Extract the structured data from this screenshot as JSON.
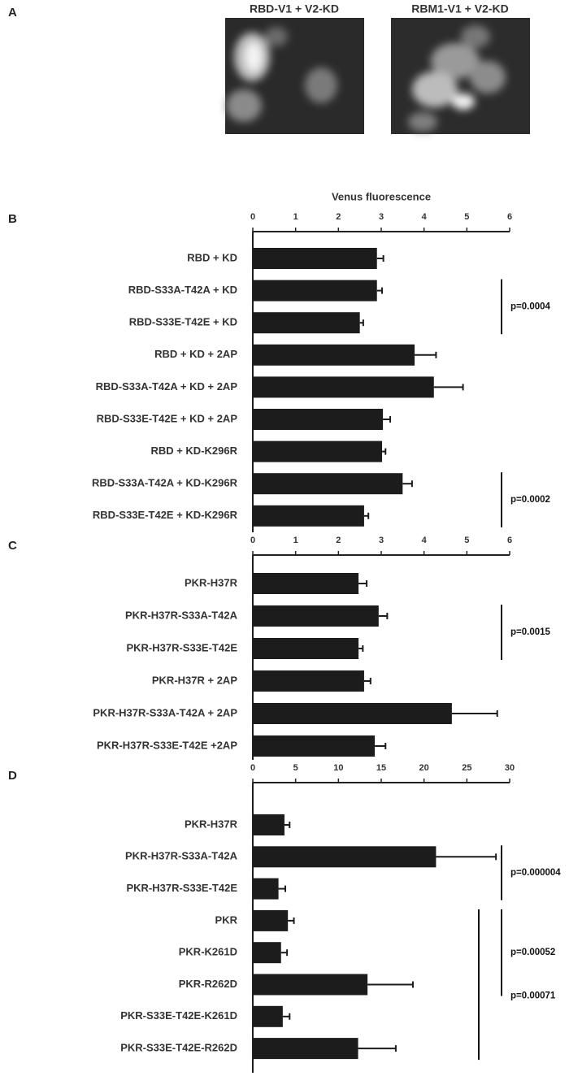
{
  "figure": {
    "panel": "A",
    "images": [
      "RBD-V1 + V2-KD",
      "RBM1-V1 + V2-KD"
    ]
  },
  "chart_data": [
    {
      "type": "hbar",
      "panel": "B",
      "x_label": "Venus fluorescence",
      "color": "#1c1c1c",
      "categories": [
        "RBD + KD",
        "RBD-S33A-T42A + KD",
        "RBD-S33E-T42E + KD",
        "RBD + KD + 2AP",
        "RBD-S33A-T42A + KD + 2AP",
        "RBD-S33E-T42E + KD + 2AP",
        "RBD + KD-K296R",
        "RBD-S33A-T42A + KD-K296R",
        "RBD-S33E-T42E + KD-K296R"
      ],
      "values": [
        2.9,
        2.9,
        2.5,
        3.78,
        4.23,
        3.04,
        3.02,
        3.5,
        2.6
      ],
      "errors": [
        0.15,
        0.12,
        0.08,
        0.5,
        0.68,
        0.17,
        0.08,
        0.22,
        0.1
      ],
      "xlim": [
        0,
        6
      ],
      "xticks": [
        0,
        1,
        2,
        3,
        4,
        5,
        6
      ],
      "annotations": [
        "p=0.0004",
        "p=0.0002"
      ]
    },
    {
      "type": "hbar",
      "panel": "C",
      "color": "#1c1c1c",
      "categories": [
        "PKR-H37R",
        "PKR-H37R-S33A-T42A",
        "PKR-H37R-S33E-T42E",
        "PKR-H37R + 2AP",
        "PKR-H37R-S33A-T42A + 2AP",
        "PKR-H37R-S33E-T42E +2AP"
      ],
      "values": [
        2.47,
        2.94,
        2.47,
        2.6,
        4.65,
        2.85
      ],
      "errors": [
        0.19,
        0.2,
        0.1,
        0.15,
        1.06,
        0.25
      ],
      "xlim": [
        0,
        6
      ],
      "xticks": [
        0,
        1,
        2,
        3,
        4,
        5,
        6
      ],
      "annotations": [
        "p=0.0015"
      ]
    },
    {
      "type": "hbar",
      "panel": "D",
      "color": "#1c1c1c",
      "categories": [
        "PKR-H37R",
        "PKR-H37R-S33A-T42A",
        "PKR-H37R-S33E-T42E",
        "PKR",
        "PKR-K261D",
        "PKR-R262D",
        "PKR-S33E-T42E-K261D",
        "PKR-S33E-T42E-R262D"
      ],
      "values": [
        3.7,
        21.4,
        3.0,
        4.1,
        3.3,
        13.4,
        3.5,
        12.3
      ],
      "errors": [
        0.6,
        7.0,
        0.8,
        0.7,
        0.7,
        5.3,
        0.8,
        4.4
      ],
      "xlim": [
        0,
        30
      ],
      "xticks": [
        0,
        5,
        10,
        15,
        20,
        25,
        30
      ],
      "annotations": [
        "p=0.000004",
        "p=0.00052",
        "p=0.00071"
      ]
    }
  ]
}
